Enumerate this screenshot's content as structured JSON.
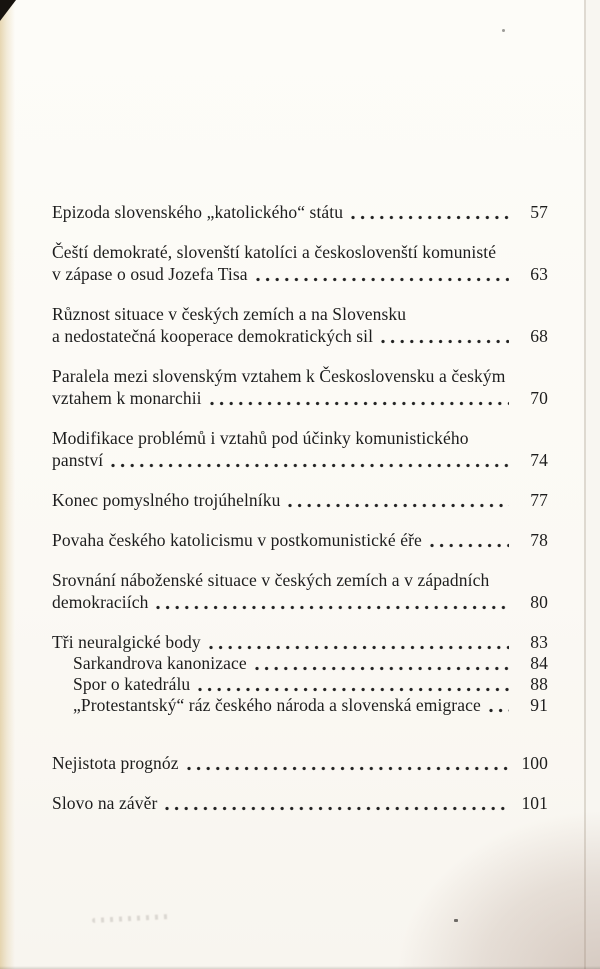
{
  "colors": {
    "paper": "#fbf9f4",
    "ink": "#1d1d1d",
    "left_edge_tint": "#d8be84",
    "corner_artifact": "#17130f",
    "curl_shadow": "#a48a7c"
  },
  "toc": {
    "entries": [
      {
        "line1": "Epizoda slovenského „katolického“ státu",
        "page": "57"
      },
      {
        "line1": "Čeští demokraté, slovenští katolíci a českoslovenští komunisté",
        "line2": "v zápase o osud Jozefa Tisa",
        "page": "63"
      },
      {
        "line1": "Různost situace v českých zemích a na Slovensku",
        "line2": "a nedostatečná kooperace demokratických sil",
        "page": "68"
      },
      {
        "line1": "Paralela mezi slovenským vztahem k Československu a českým",
        "line2": "vztahem k monarchii",
        "page": "70"
      },
      {
        "line1": "Modifikace problémů i vztahů pod účinky komunistického",
        "line2": "panství",
        "page": "74"
      },
      {
        "line1": "Konec pomyslného trojúhelníku",
        "page": "77"
      },
      {
        "line1": "Povaha českého katolicismu v postkomunistické éře",
        "page": "78"
      },
      {
        "line1": "Srovnání náboženské situace v českých zemích a v západních",
        "line2": "demokraciích",
        "page": "80"
      },
      {
        "line1": "Tři neuralgické body",
        "page": "83"
      },
      {
        "line1": "Sarkandrova kanonizace",
        "page": "84"
      },
      {
        "line1": "Spor o katedrálu",
        "page": "88"
      },
      {
        "line1": "„Protestantský“ ráz českého národa a slovenská emigrace",
        "page": "91"
      },
      {
        "line1": "Nejistota prognóz",
        "page": "100"
      },
      {
        "line1": "Slovo na závěr",
        "page": "101"
      }
    ]
  }
}
